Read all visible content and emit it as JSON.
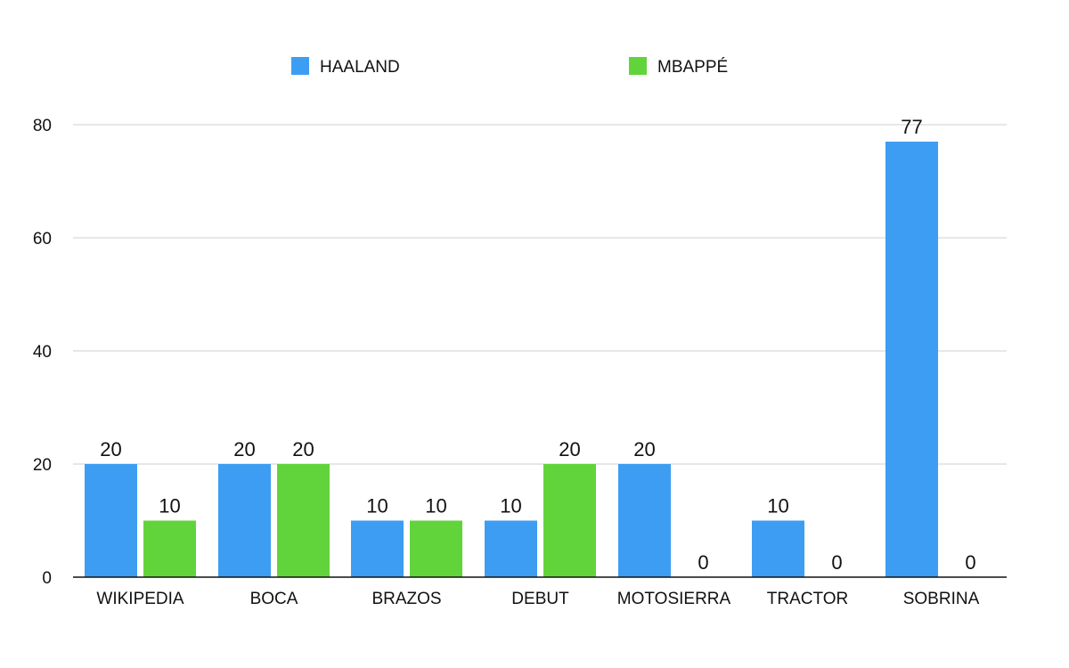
{
  "chart_data": {
    "type": "bar",
    "categories": [
      "WIKIPEDIA",
      "BOCA",
      "BRAZOS",
      "DEBUT",
      "MOTOSIERRA",
      "TRACTOR",
      "SOBRINA"
    ],
    "series": [
      {
        "name": "HAALAND",
        "values": [
          20,
          20,
          10,
          10,
          20,
          10,
          77
        ],
        "color": "#3d9df2"
      },
      {
        "name": "MBAPPÉ",
        "values": [
          10,
          20,
          10,
          20,
          0,
          0,
          0
        ],
        "color": "#62d43b"
      }
    ],
    "ylim": [
      0,
      80
    ],
    "yticks": [
      0,
      20,
      40,
      60,
      80
    ],
    "grid": true,
    "legend_position": "top",
    "data_labels": true
  }
}
